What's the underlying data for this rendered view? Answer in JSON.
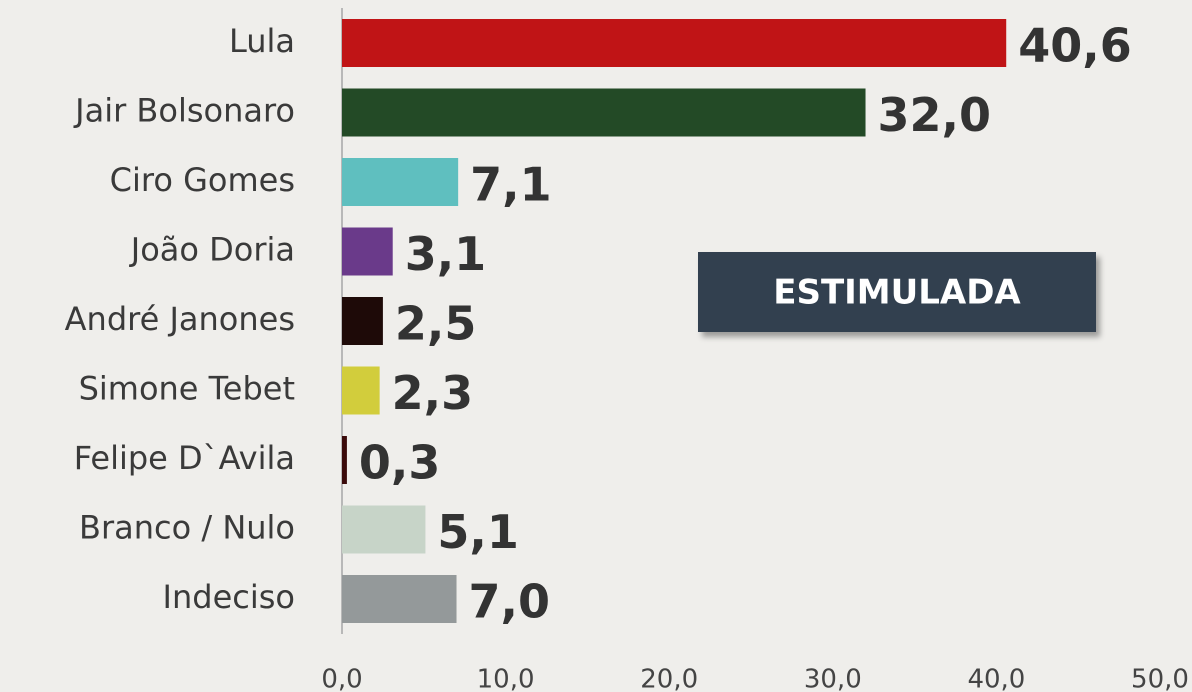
{
  "chart_data": {
    "type": "bar",
    "orientation": "horizontal",
    "categories": [
      "Lula",
      "Jair Bolsonaro",
      "Ciro Gomes",
      "João Doria",
      "André Janones",
      "Simone Tebet",
      "Felipe D`Avila",
      "Branco / Nulo",
      "Indeciso"
    ],
    "values": [
      40.6,
      32.0,
      7.1,
      3.1,
      2.5,
      2.3,
      0.3,
      5.1,
      7.0
    ],
    "value_labels": [
      "40,6",
      "32,0",
      "7,1",
      "3,1",
      "2,5",
      "2,3",
      "0,3",
      "5,1",
      "7,0"
    ],
    "colors": [
      "#c01416",
      "#234a26",
      "#5fbfbf",
      "#6a3a8a",
      "#1e0a08",
      "#d2cd3c",
      "#3a0a0a",
      "#c7d4c8",
      "#94999a"
    ],
    "xlim": [
      0,
      50
    ],
    "xticks": [
      {
        "value": 0,
        "label": "0,0"
      },
      {
        "value": 10,
        "label": "10,0"
      },
      {
        "value": 20,
        "label": "20,0"
      },
      {
        "value": 30,
        "label": "30,0"
      },
      {
        "value": 40,
        "label": "40,0"
      },
      {
        "value": 50,
        "label": "50,0"
      }
    ],
    "annotation": "ESTIMULADA"
  }
}
